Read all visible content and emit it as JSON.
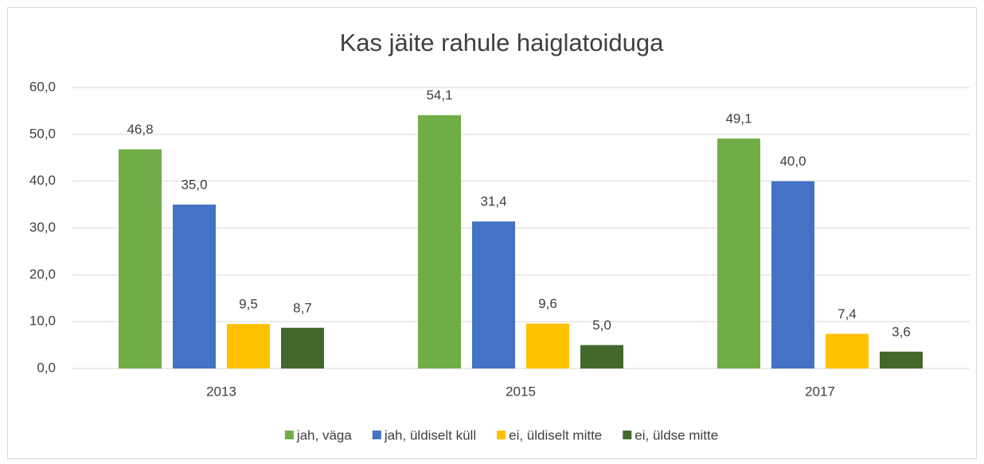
{
  "chart_data": {
    "type": "bar",
    "title": "Kas jäite rahule haiglatoiduga",
    "categories": [
      "2013",
      "2015",
      "2017"
    ],
    "series": [
      {
        "name": "jah, väga",
        "color": "#70ad47",
        "values": [
          46.8,
          54.1,
          49.1
        ],
        "value_labels": [
          "46,8",
          "54,1",
          "49,1"
        ]
      },
      {
        "name": "jah, üldiselt küll",
        "color": "#4472c4",
        "values": [
          35.0,
          31.4,
          40.0
        ],
        "value_labels": [
          "35,0",
          "31,4",
          "40,0"
        ]
      },
      {
        "name": "ei, üldiselt mitte",
        "color": "#ffc000",
        "values": [
          9.5,
          9.6,
          7.4
        ],
        "value_labels": [
          "9,5",
          "9,6",
          "7,4"
        ]
      },
      {
        "name": "ei, üldse mitte",
        "color": "#43682b",
        "values": [
          8.7,
          5.0,
          3.6
        ],
        "value_labels": [
          "8,7",
          "5,0",
          "3,6"
        ]
      }
    ],
    "ylim": [
      0,
      60
    ],
    "yticks": [
      {
        "value": 0,
        "label": "0,0"
      },
      {
        "value": 10,
        "label": "10,0"
      },
      {
        "value": 20,
        "label": "20,0"
      },
      {
        "value": 30,
        "label": "30,0"
      },
      {
        "value": 40,
        "label": "40,0"
      },
      {
        "value": 50,
        "label": "50,0"
      },
      {
        "value": 60,
        "label": "60,0"
      }
    ],
    "grid": true,
    "legend": "bottom"
  }
}
